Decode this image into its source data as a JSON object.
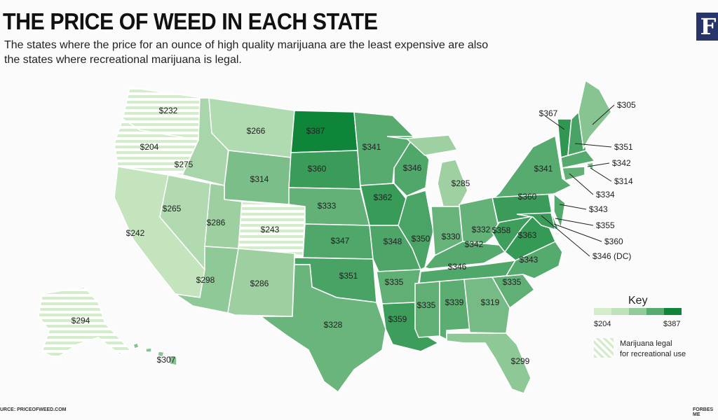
{
  "title": "THE PRICE OF WEED IN EACH STATE",
  "subtitle": "The states where the price for an ounce of high quality marijuana are the least expensive are also the states where recreational marijuana is legal.",
  "logo": "F",
  "source": "URCE: PRICEOFWEED.COM",
  "credit": "FORBES ME",
  "colors": {
    "low": "#d3ecc9",
    "high": "#0f853a",
    "stripe": "#d3ecc9"
  },
  "states": [
    {
      "id": "WA",
      "price": 232,
      "label": "$232",
      "legal": true
    },
    {
      "id": "OR",
      "price": 204,
      "label": "$204",
      "legal": true
    },
    {
      "id": "CA",
      "price": 242,
      "label": "$242"
    },
    {
      "id": "NV",
      "price": 265,
      "label": "$265"
    },
    {
      "id": "ID",
      "price": 275,
      "label": "$275"
    },
    {
      "id": "MT",
      "price": 266,
      "label": "$266"
    },
    {
      "id": "WY",
      "price": 314,
      "label": "$314"
    },
    {
      "id": "UT",
      "price": 286,
      "label": "$286"
    },
    {
      "id": "CO",
      "price": 243,
      "label": "$243",
      "legal": true
    },
    {
      "id": "AZ",
      "price": 298,
      "label": "$298"
    },
    {
      "id": "NM",
      "price": 286,
      "label": "$286"
    },
    {
      "id": "ND",
      "price": 387,
      "label": "$387"
    },
    {
      "id": "SD",
      "price": 360,
      "label": "$360"
    },
    {
      "id": "NE",
      "price": 333,
      "label": "$333"
    },
    {
      "id": "KS",
      "price": 347,
      "label": "$347"
    },
    {
      "id": "OK",
      "price": 351,
      "label": "$351"
    },
    {
      "id": "TX",
      "price": 328,
      "label": "$328"
    },
    {
      "id": "MN",
      "price": 341,
      "label": "$341"
    },
    {
      "id": "IA",
      "price": 362,
      "label": "$362"
    },
    {
      "id": "MO",
      "price": 348,
      "label": "$348"
    },
    {
      "id": "AR",
      "price": 335,
      "label": "$335"
    },
    {
      "id": "LA",
      "price": 359,
      "label": "$359"
    },
    {
      "id": "WI",
      "price": 346,
      "label": "$346"
    },
    {
      "id": "IL",
      "price": 350,
      "label": "$350"
    },
    {
      "id": "MI",
      "price": 285,
      "label": "$285"
    },
    {
      "id": "IN",
      "price": 330,
      "label": "$330"
    },
    {
      "id": "OH",
      "price": 332,
      "label": "$332"
    },
    {
      "id": "KY",
      "price": 342,
      "label": "$342"
    },
    {
      "id": "TN",
      "price": 346,
      "label": "$346"
    },
    {
      "id": "MS",
      "price": 335,
      "label": "$335"
    },
    {
      "id": "AL",
      "price": 339,
      "label": "$339"
    },
    {
      "id": "GA",
      "price": 319,
      "label": "$319"
    },
    {
      "id": "FL",
      "price": 299,
      "label": "$299"
    },
    {
      "id": "SC",
      "price": 335,
      "label": "$335"
    },
    {
      "id": "NC",
      "price": 343,
      "label": "$343"
    },
    {
      "id": "VA",
      "price": 363,
      "label": "$363"
    },
    {
      "id": "WV",
      "price": 358,
      "label": "$358"
    },
    {
      "id": "PA",
      "price": 360,
      "label": "$360"
    },
    {
      "id": "NY",
      "price": 341,
      "label": "$341"
    },
    {
      "id": "VT",
      "price": 367,
      "label": "$367"
    },
    {
      "id": "NH",
      "price": 351,
      "label": "$351"
    },
    {
      "id": "ME",
      "price": 305,
      "label": "$305"
    },
    {
      "id": "MA",
      "price": 342,
      "label": "$342"
    },
    {
      "id": "RI",
      "price": 314,
      "label": "$314"
    },
    {
      "id": "CT",
      "price": 334,
      "label": "$334"
    },
    {
      "id": "NJ",
      "price": 343,
      "label": "$343"
    },
    {
      "id": "DE",
      "price": 355,
      "label": "$355"
    },
    {
      "id": "MD",
      "price": 360,
      "label": "$360"
    },
    {
      "id": "DC",
      "price": 346,
      "label": "$346 (DC)"
    },
    {
      "id": "AK",
      "price": 294,
      "label": "$294",
      "legal": true
    },
    {
      "id": "HI",
      "price": 307,
      "label": "$307"
    }
  ],
  "key": {
    "title": "Key",
    "min_label": "$204",
    "max_label": "$387",
    "min": 204,
    "max": 387,
    "legal_line1": "Marijuana legal",
    "legal_line2": "for recreational use"
  }
}
